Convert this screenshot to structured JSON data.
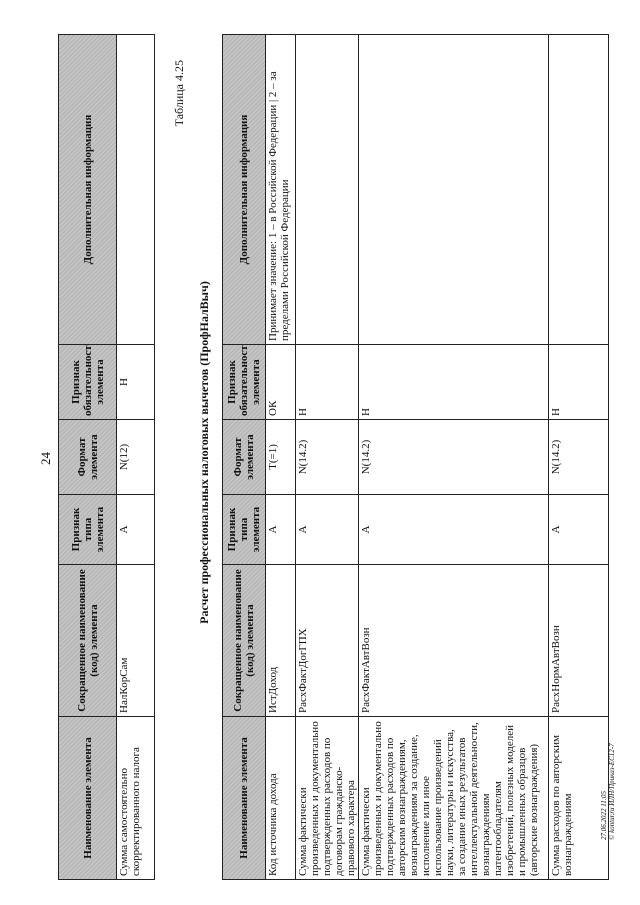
{
  "page_number": "24",
  "columns": [
    "Наименование элемента",
    "Сокращенное наименование (код) элемента",
    "Признак типа элемента",
    "Формат элемента",
    "Признак обязательности элемента",
    "Дополнительная информация"
  ],
  "table1": {
    "rows": [
      [
        "Сумма самостоятельно скорректированного налога",
        "НалКорСам",
        "А",
        "N(12)",
        "Н",
        ""
      ]
    ]
  },
  "table2_number": "Таблица 4.25",
  "table2_caption": "Расчет профессиональных налоговых вычетов (ПрофНалВыч)",
  "table2": {
    "rows": [
      [
        "Код источника дохода",
        "ИстДоход",
        "А",
        "T(=1)",
        "ОК",
        "Принимает значение: 1 – в Российской Федерации | 2 – за пределами Российской Федерации"
      ],
      [
        "Сумма фактически произведенных и документально подтвержденных расходов по договорам гражданско-правового характера",
        "РасхФактДогГПХ",
        "А",
        "N(14.2)",
        "Н",
        ""
      ],
      [
        "Сумма фактически произведенных и документально подтвержденных расходов по авторским вознаграждениям, вознаграждениям за создание, исполнение или иное использование произведений науки, литературы и искусства, за создание иных результатов интеллектуальной деятельности, вознаграждениям патентообладателям изобретений, полезных моделей и промышленных образцов (авторские вознаграждения)",
        "РасхФактАвтВозн",
        "А",
        "N(14.2)",
        "Н",
        ""
      ],
      [
        "Сумма расходов по авторским вознаграждениям",
        "РасхНормАвтВозн",
        "А",
        "N(14.2)",
        "Н",
        ""
      ]
    ]
  },
  "footer": {
    "line1": "27.06.2022 11:05",
    "line2": "© kontur.ru ИЛН/Приказ-ЕС12-7"
  }
}
